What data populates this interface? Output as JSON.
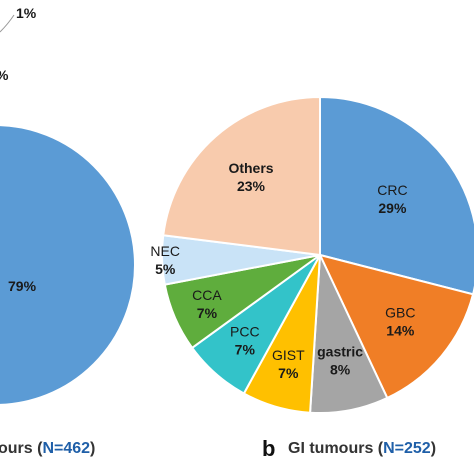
{
  "chart_data": [
    {
      "type": "pie",
      "caption": {
        "text": "ours (",
        "n_label": "N=462",
        "close": ")"
      },
      "labels": [
        "",
        "79%",
        "1%",
        "%"
      ],
      "visible_slices": [
        {
          "name": "",
          "percent": "79%",
          "value": 79,
          "color": "#5b9bd5"
        }
      ],
      "top_label": "1%",
      "left_label": "%"
    },
    {
      "type": "pie",
      "letter": "b",
      "caption": {
        "text": "GI tumours (",
        "n_label": "N=252",
        "close": ")"
      },
      "slices": [
        {
          "name": "CRC",
          "percent": "29%",
          "value": 29,
          "color": "#5b9bd5"
        },
        {
          "name": "GBC",
          "percent": "14%",
          "value": 14,
          "color": "#f07e26"
        },
        {
          "name": "gastric",
          "percent": "8%",
          "value": 8,
          "color": "#a5a5a5"
        },
        {
          "name": "GIST",
          "percent": "7%",
          "value": 7,
          "color": "#ffc000"
        },
        {
          "name": "PCC",
          "percent": "7%",
          "value": 7,
          "color": "#33c3c9"
        },
        {
          "name": "CCA",
          "percent": "7%",
          "value": 7,
          "color": "#5fad3d"
        },
        {
          "name": "NEC",
          "percent": "5%",
          "value": 5,
          "color": "#c9e3f7"
        },
        {
          "name": "Others",
          "percent": "23%",
          "value": 23,
          "color": "#f8cbad"
        }
      ]
    }
  ]
}
